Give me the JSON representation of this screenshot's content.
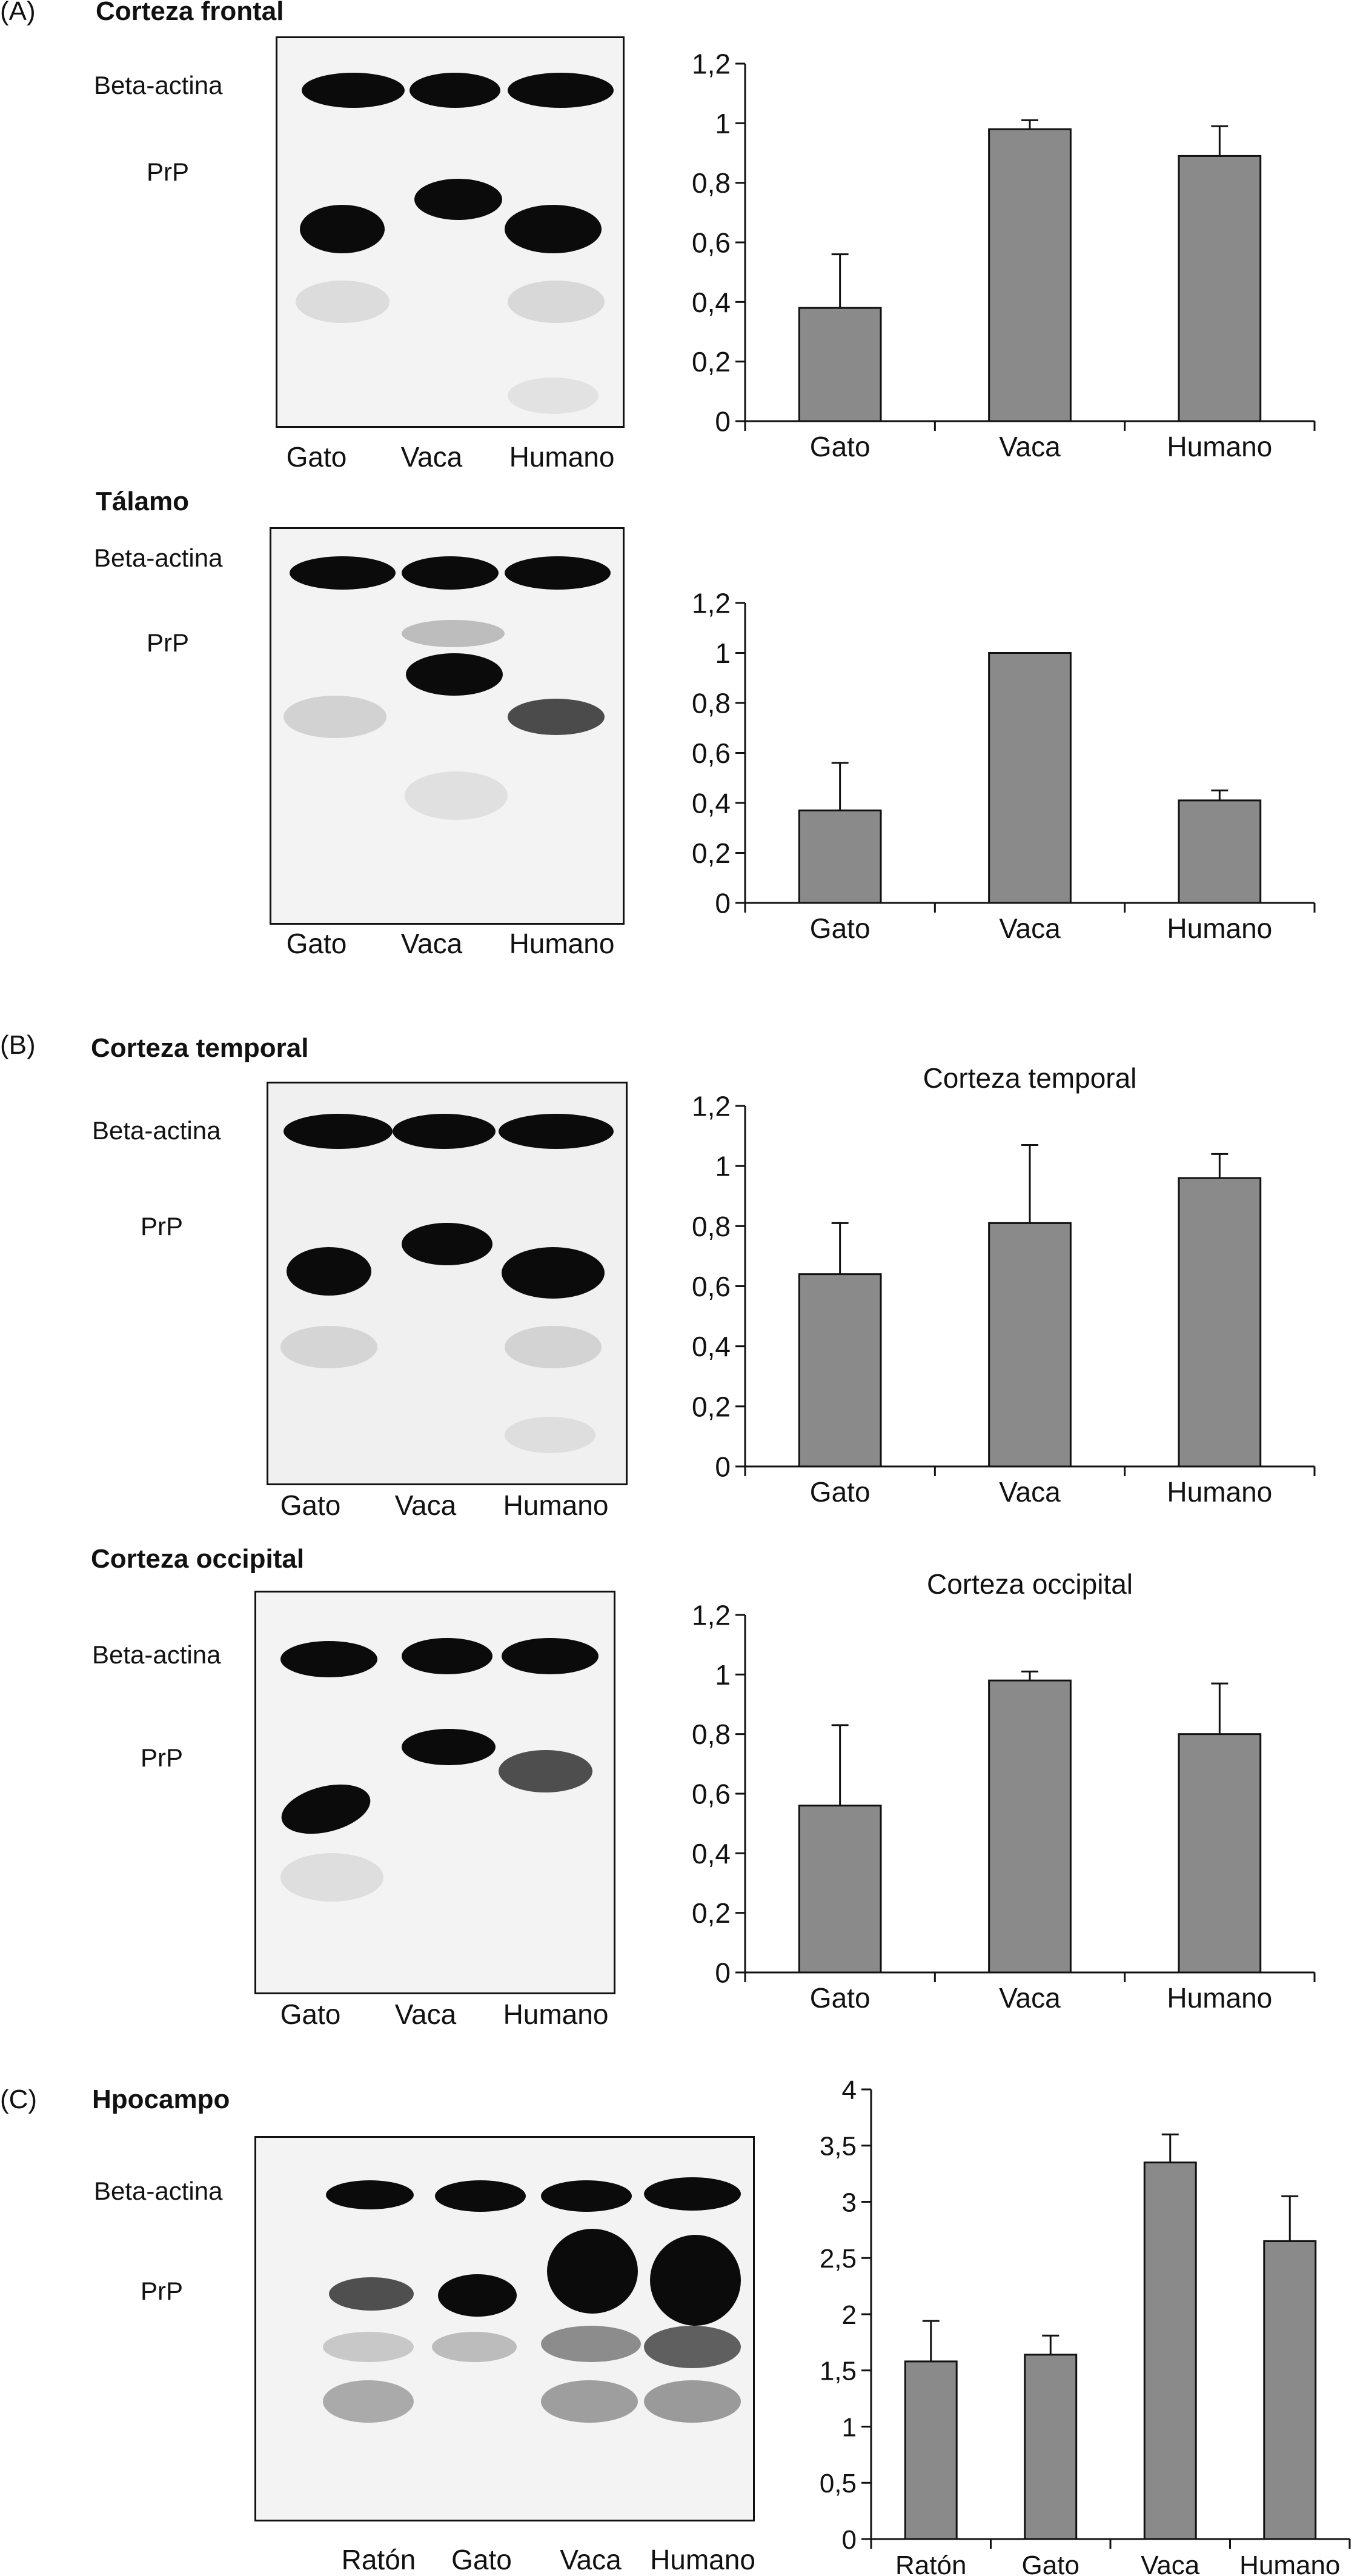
{
  "panels": [
    {
      "id": "A",
      "label": "(A)"
    },
    {
      "id": "B",
      "label": "(B)"
    },
    {
      "id": "C",
      "label": "(C)"
    }
  ],
  "blots": [
    {
      "heading": "Corteza frontal",
      "top_label": "Beta-actina",
      "bottom_label": "PrP",
      "lanes": [
        "Gato",
        "Vaca",
        "Humano"
      ]
    },
    {
      "heading": "Tálamo",
      "top_label": "Beta-actina",
      "bottom_label": "PrP",
      "lanes": [
        "Gato",
        "Vaca",
        "Humano"
      ]
    },
    {
      "heading": "Corteza temporal",
      "top_label": "Beta-actina",
      "bottom_label": "PrP",
      "lanes": [
        "Gato",
        "Vaca",
        "Humano"
      ]
    },
    {
      "heading": "Corteza occipital",
      "top_label": "Beta-actina",
      "bottom_label": "PrP",
      "lanes": [
        "Gato",
        "Vaca",
        "Humano"
      ]
    },
    {
      "heading": "Hpocampo",
      "top_label": "Beta-actina",
      "bottom_label": "PrP",
      "lanes": [
        "Ratón",
        "Gato",
        "Vaca",
        "Humano"
      ]
    }
  ],
  "chart_data": [
    {
      "type": "bar",
      "title": "",
      "categories": [
        "Gato",
        "Vaca",
        "Humano"
      ],
      "values": [
        0.38,
        0.98,
        0.89
      ],
      "errors": [
        0.18,
        0.03,
        0.1
      ],
      "ylim": [
        0,
        1.2
      ],
      "yticks": [
        "0",
        "0,2",
        "0,4",
        "0,6",
        "0,8",
        "1",
        "1,2"
      ],
      "ytick_values": [
        0,
        0.2,
        0.4,
        0.6,
        0.8,
        1,
        1.2
      ],
      "bar_color": "#8a8a8a",
      "grid": false
    },
    {
      "type": "bar",
      "title": "",
      "categories": [
        "Gato",
        "Vaca",
        "Humano"
      ],
      "values": [
        0.37,
        1.0,
        0.41
      ],
      "errors": [
        0.19,
        0.0,
        0.04
      ],
      "ylim": [
        0,
        1.2
      ],
      "yticks": [
        "0",
        "0,2",
        "0,4",
        "0,6",
        "0,8",
        "1",
        "1,2"
      ],
      "ytick_values": [
        0,
        0.2,
        0.4,
        0.6,
        0.8,
        1,
        1.2
      ],
      "bar_color": "#8a8a8a",
      "grid": false
    },
    {
      "type": "bar",
      "title": "Corteza temporal",
      "categories": [
        "Gato",
        "Vaca",
        "Humano"
      ],
      "values": [
        0.64,
        0.81,
        0.96
      ],
      "errors": [
        0.17,
        0.26,
        0.08
      ],
      "ylim": [
        0,
        1.2
      ],
      "yticks": [
        "0",
        "0,2",
        "0,4",
        "0,6",
        "0,8",
        "1",
        "1,2"
      ],
      "ytick_values": [
        0,
        0.2,
        0.4,
        0.6,
        0.8,
        1,
        1.2
      ],
      "bar_color": "#8a8a8a",
      "grid": false
    },
    {
      "type": "bar",
      "title": "Corteza occipital",
      "categories": [
        "Gato",
        "Vaca",
        "Humano"
      ],
      "values": [
        0.56,
        0.98,
        0.8
      ],
      "errors": [
        0.27,
        0.03,
        0.17
      ],
      "ylim": [
        0,
        1.2
      ],
      "yticks": [
        "0",
        "0,2",
        "0,4",
        "0,6",
        "0,8",
        "1",
        "1,2"
      ],
      "ytick_values": [
        0,
        0.2,
        0.4,
        0.6,
        0.8,
        1,
        1.2
      ],
      "bar_color": "#8a8a8a",
      "grid": false
    },
    {
      "type": "bar",
      "title": "",
      "categories": [
        "Ratón",
        "Gato",
        "Vaca",
        "Humano"
      ],
      "values": [
        1.58,
        1.64,
        3.35,
        2.65
      ],
      "errors": [
        0.36,
        0.17,
        0.25,
        0.4
      ],
      "ylim": [
        0,
        4
      ],
      "yticks": [
        "0",
        "0,5",
        "1",
        "1,5",
        "2",
        "2,5",
        "3",
        "3,5",
        "4"
      ],
      "ytick_values": [
        0,
        0.5,
        1,
        1.5,
        2,
        2.5,
        3,
        3.5,
        4
      ],
      "bar_color": "#8a8a8a",
      "grid": false
    }
  ]
}
